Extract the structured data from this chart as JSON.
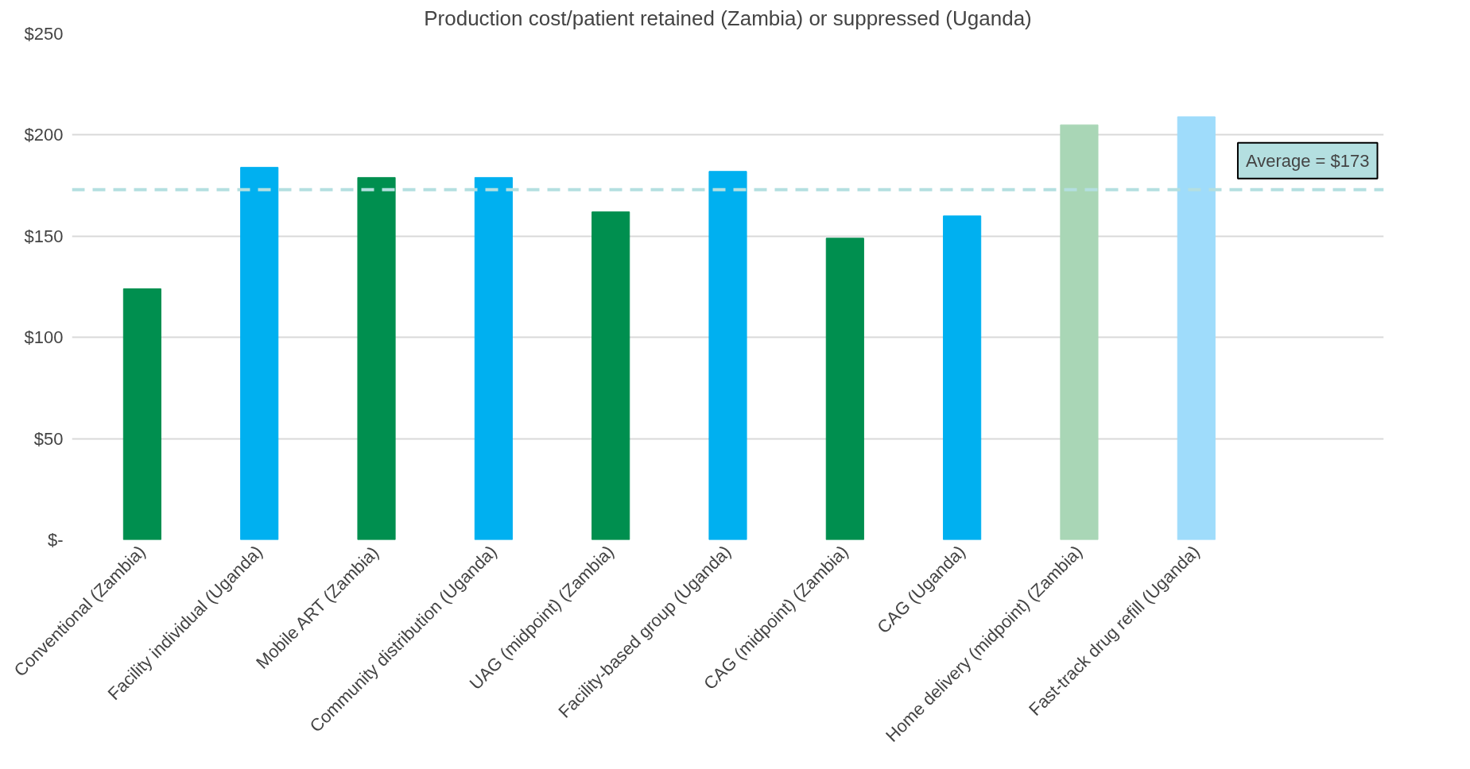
{
  "chart_data": {
    "type": "bar",
    "title": "Production cost/patient retained (Zambia) or suppressed (Uganda)",
    "categories": [
      "Conventional (Zambia)",
      "Facility individual (Uganda)",
      "Mobile ART (Zambia)",
      "Community distribution (Uganda)",
      "UAG (midpoint) (Zambia)",
      "Facility-based group (Uganda)",
      "CAG (midpoint) (Zambia)",
      "CAG (Uganda)",
      "Home delivery (midpoint) (Zambia)",
      "Fast-track drug refill (Uganda)"
    ],
    "values": [
      124,
      184,
      179,
      179,
      162,
      182,
      149,
      160,
      205,
      209
    ],
    "colors": [
      "#008f4f",
      "#00b0f0",
      "#008f4f",
      "#00b0f0",
      "#008f4f",
      "#00b0f0",
      "#008f4f",
      "#00b0f0",
      "#a9d6b6",
      "#9fdcfb"
    ],
    "ylim": [
      0,
      250
    ],
    "yticks": [
      {
        "value": 0,
        "label": "$-"
      },
      {
        "value": 50,
        "label": "$50"
      },
      {
        "value": 100,
        "label": "$100"
      },
      {
        "value": 150,
        "label": "$150"
      },
      {
        "value": 200,
        "label": "$200"
      },
      {
        "value": 250,
        "label": "$250"
      }
    ],
    "grid": "y",
    "ref_lines": [
      {
        "axis": "y",
        "value": 173,
        "label": "Average = $173",
        "color": "#b4dfe0",
        "line_style": "dashed"
      }
    ]
  }
}
